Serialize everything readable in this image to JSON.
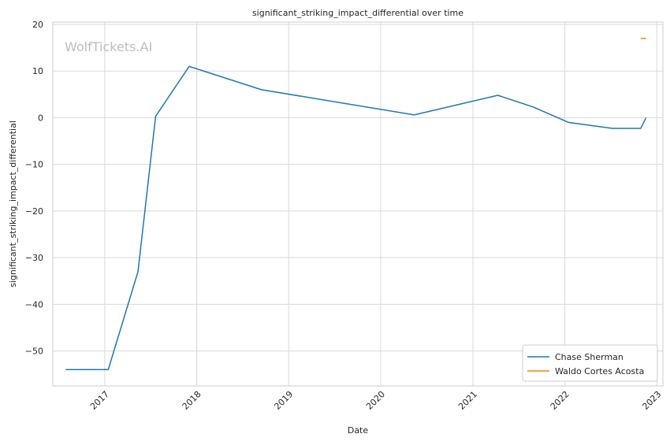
{
  "chart_data": {
    "type": "line",
    "title": "significant_striking_impact_differential over time",
    "xlabel": "Date",
    "ylabel": "significant_striking_impact_differential",
    "watermark": "WolfTickets.AI",
    "x_ticks": [
      "2017",
      "2018",
      "2019",
      "2020",
      "2021",
      "2022",
      "2023"
    ],
    "y_ticks": [
      20,
      10,
      0,
      -10,
      -20,
      -30,
      -40,
      -50
    ],
    "y_tick_labels": [
      "20",
      "10",
      "0",
      "−10",
      "−20",
      "−30",
      "−40",
      "−50"
    ],
    "xlim": [
      "2016-06-09",
      "2023-01-25"
    ],
    "ylim": [
      -57.5,
      20.5
    ],
    "grid": true,
    "legend_position": "bottom-right",
    "series": [
      {
        "name": "Chase Sherman",
        "color": "#1f77b4",
        "points": [
          {
            "x": "2016-07-30",
            "y": -54
          },
          {
            "x": "2017-01-15",
            "y": -54
          },
          {
            "x": "2017-05-13",
            "y": -33
          },
          {
            "x": "2017-07-22",
            "y": 0.3
          },
          {
            "x": "2017-12-02",
            "y": 11
          },
          {
            "x": "2018-09-15",
            "y": 6
          },
          {
            "x": "2020-05-13",
            "y": 0.6
          },
          {
            "x": "2021-04-10",
            "y": 4.8
          },
          {
            "x": "2021-08-28",
            "y": 2.3
          },
          {
            "x": "2022-01-15",
            "y": -1
          },
          {
            "x": "2022-07-09",
            "y": -2.3
          },
          {
            "x": "2022-10-29",
            "y": -2.3
          },
          {
            "x": "2022-11-19",
            "y": 0
          }
        ]
      },
      {
        "name": "Waldo Cortes Acosta",
        "color": "#ff7f0e",
        "points": [
          {
            "x": "2022-10-29",
            "y": 17
          },
          {
            "x": "2022-11-19",
            "y": 17
          }
        ]
      }
    ]
  }
}
